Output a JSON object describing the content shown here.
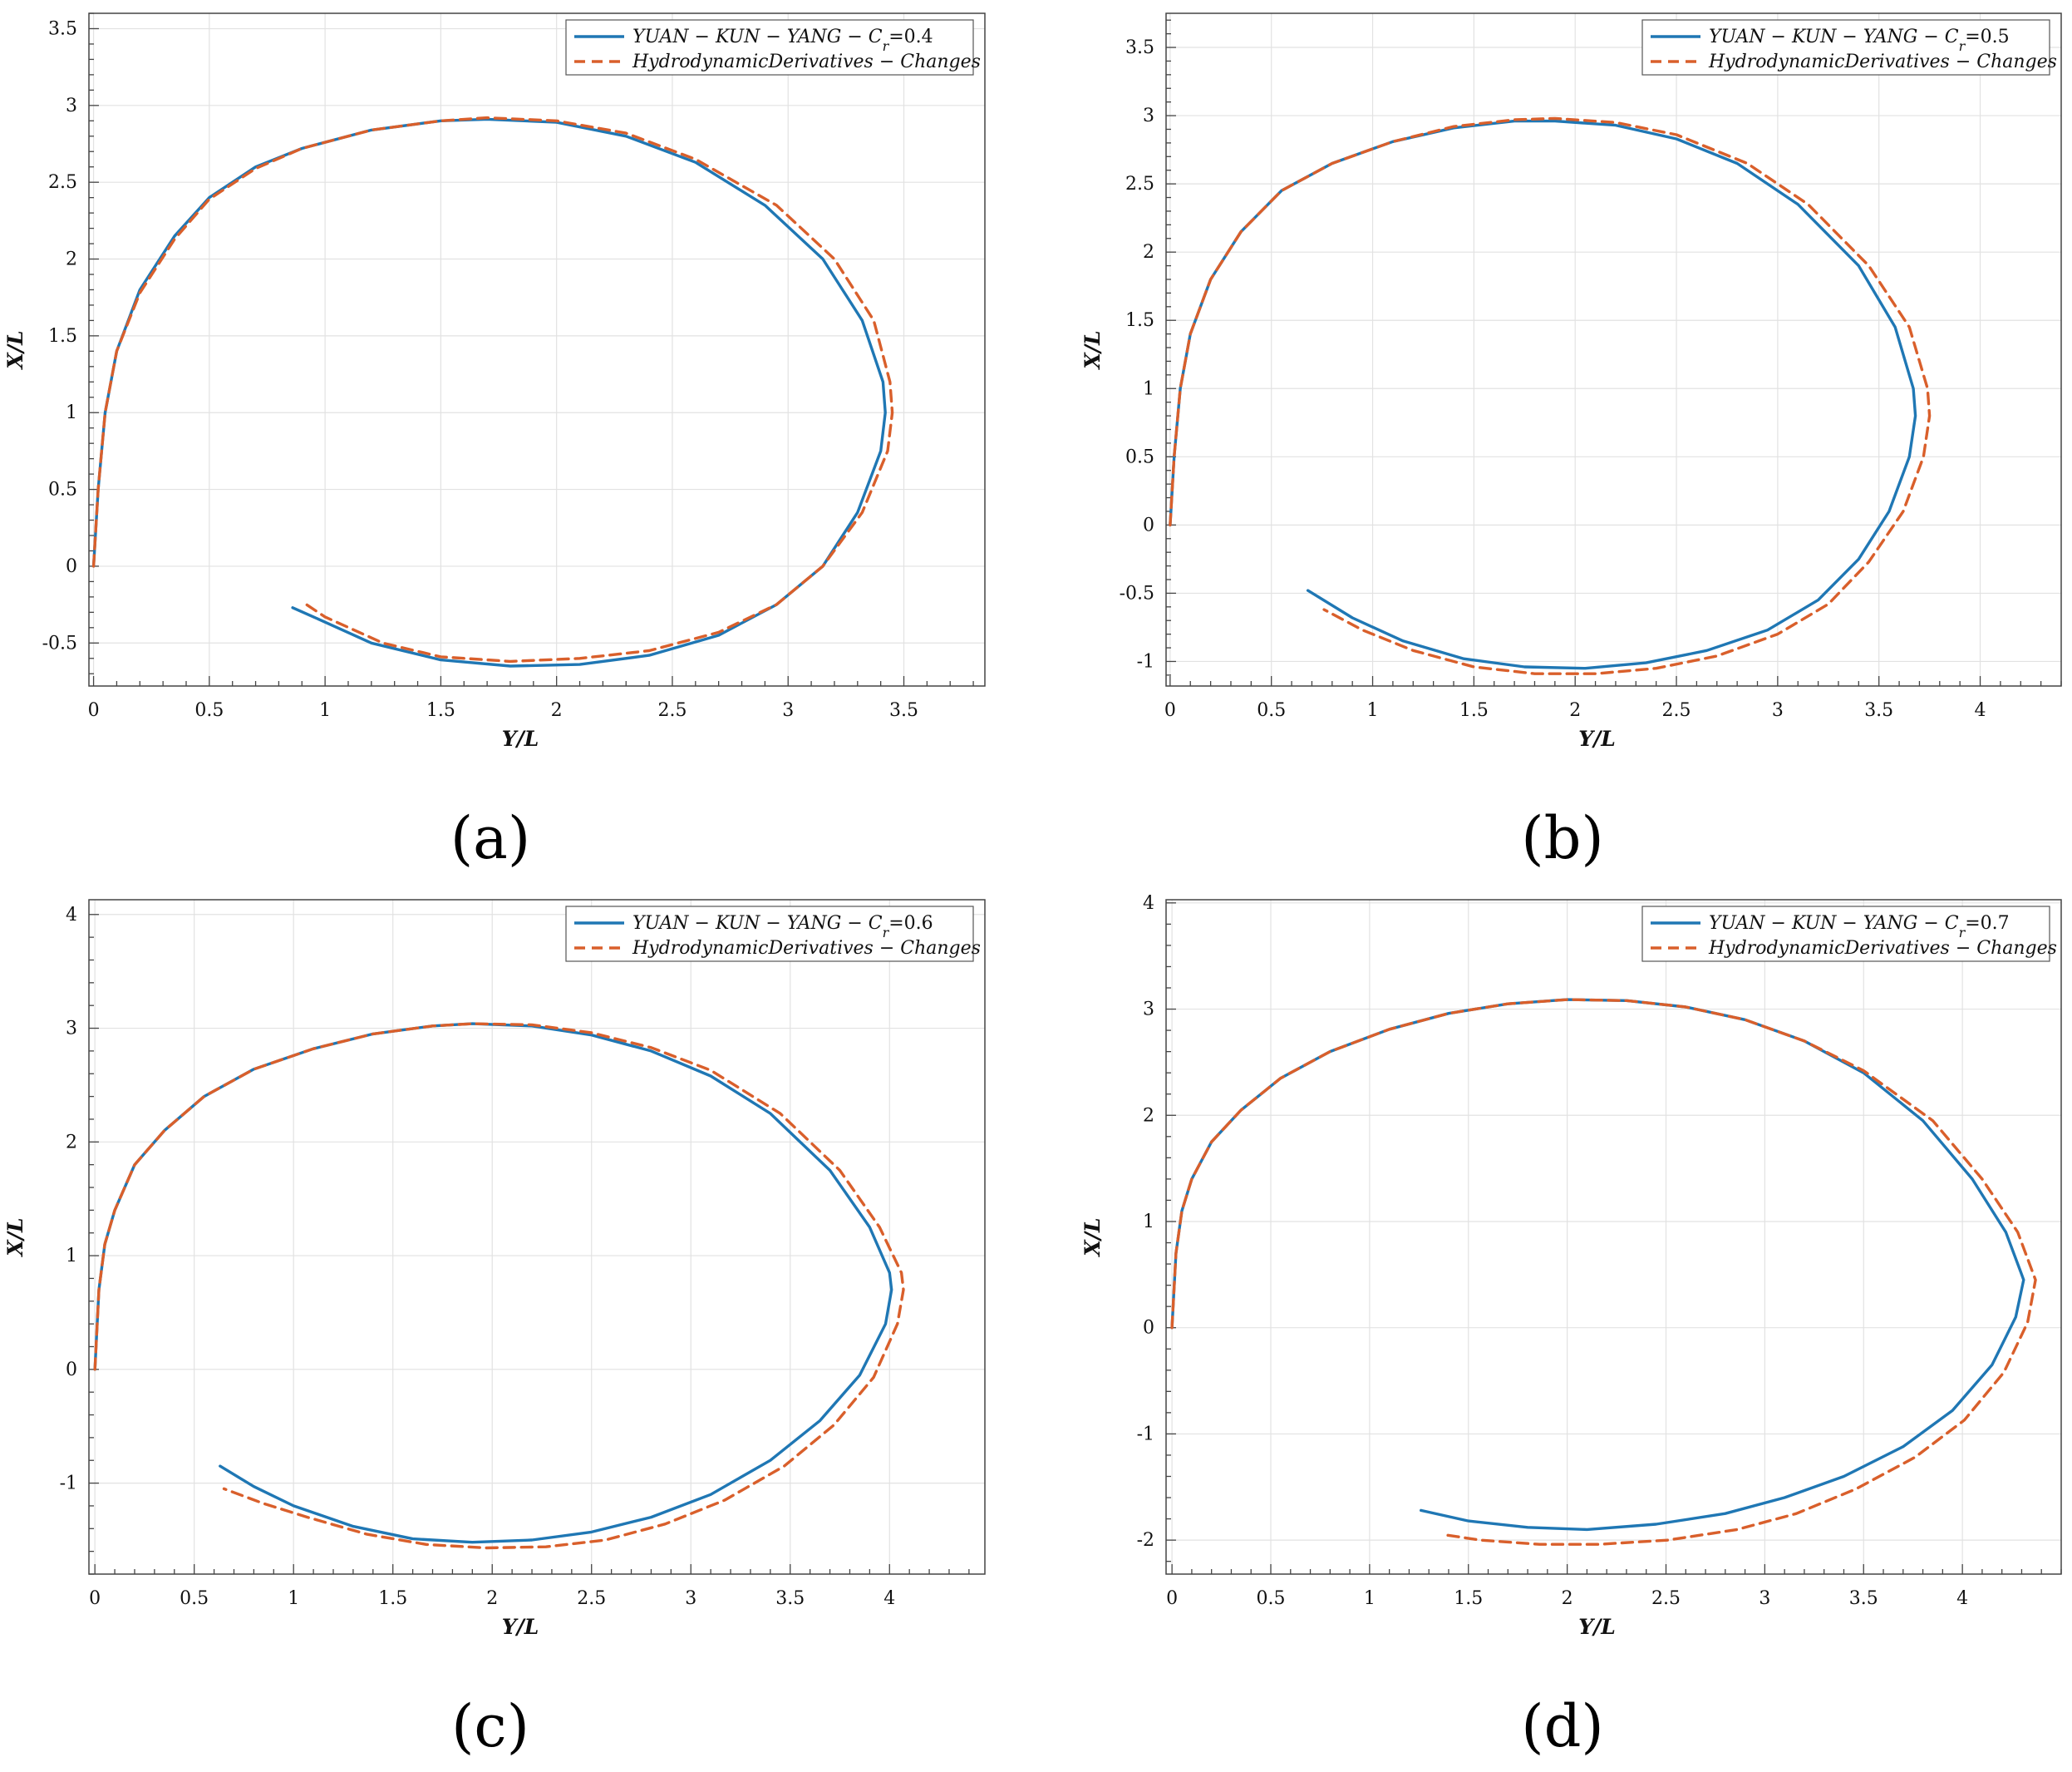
{
  "colors": {
    "series1": "#1f77b4",
    "series2": "#d95f2b",
    "grid": "#e2e2e2",
    "axis": "#444444"
  },
  "chart_data": [
    {
      "type": "line",
      "panel_label": "(a)",
      "xlabel": "Y/L",
      "ylabel": "X/L",
      "xlim": [
        -0.02,
        3.85
      ],
      "ylim": [
        -0.78,
        3.6
      ],
      "xticks": [
        0,
        0.5,
        1,
        1.5,
        2,
        2.5,
        3,
        3.5
      ],
      "yticks": [
        -0.5,
        0,
        0.5,
        1,
        1.5,
        2,
        2.5,
        3,
        3.5
      ],
      "grid": true,
      "legend_position": "top-right",
      "series": [
        {
          "name": "YUAN − KUN − YANG − C_r=0.4",
          "legend": {
            "prefix": "YUAN − KUN − YANG − C",
            "sub": "r",
            "suffix": "=0.4"
          },
          "style": "solid",
          "x": [
            0,
            0.02,
            0.05,
            0.1,
            0.2,
            0.35,
            0.5,
            0.7,
            0.9,
            1.2,
            1.5,
            1.7,
            2.0,
            2.3,
            2.6,
            2.9,
            3.15,
            3.32,
            3.41,
            3.42,
            3.4,
            3.3,
            3.15,
            2.95,
            2.7,
            2.4,
            2.1,
            1.8,
            1.5,
            1.2,
            0.95,
            0.86
          ],
          "y": [
            0,
            0.5,
            1.0,
            1.4,
            1.8,
            2.15,
            2.4,
            2.6,
            2.72,
            2.84,
            2.9,
            2.91,
            2.89,
            2.8,
            2.63,
            2.35,
            2.0,
            1.6,
            1.2,
            1.0,
            0.75,
            0.35,
            0.0,
            -0.25,
            -0.45,
            -0.58,
            -0.64,
            -0.65,
            -0.61,
            -0.5,
            -0.33,
            -0.27
          ]
        },
        {
          "name": "HydrodynamicDerivatives − Changes",
          "legend": {
            "prefix": "HydrodynamicDerivatives − Changes",
            "sub": "",
            "suffix": ""
          },
          "style": "dashed",
          "x": [
            0,
            0.02,
            0.05,
            0.1,
            0.2,
            0.35,
            0.5,
            0.7,
            0.9,
            1.2,
            1.5,
            1.7,
            2.0,
            2.3,
            2.6,
            2.95,
            3.2,
            3.37,
            3.44,
            3.45,
            3.43,
            3.32,
            3.15,
            2.95,
            2.7,
            2.4,
            2.1,
            1.8,
            1.5,
            1.25,
            1.0,
            0.92
          ],
          "y": [
            0,
            0.5,
            1.0,
            1.4,
            1.78,
            2.13,
            2.39,
            2.59,
            2.72,
            2.84,
            2.9,
            2.92,
            2.9,
            2.82,
            2.65,
            2.35,
            2.0,
            1.6,
            1.2,
            1.0,
            0.75,
            0.35,
            0.0,
            -0.25,
            -0.43,
            -0.55,
            -0.6,
            -0.62,
            -0.59,
            -0.5,
            -0.33,
            -0.25
          ]
        }
      ]
    },
    {
      "type": "line",
      "panel_label": "(b)",
      "xlabel": "Y/L",
      "ylabel": "X/L",
      "xlim": [
        -0.02,
        4.4
      ],
      "ylim": [
        -1.18,
        3.75
      ],
      "xticks": [
        0,
        0.5,
        1,
        1.5,
        2,
        2.5,
        3,
        3.5,
        4
      ],
      "yticks": [
        -1,
        -0.5,
        0,
        0.5,
        1,
        1.5,
        2,
        2.5,
        3,
        3.5
      ],
      "grid": true,
      "legend_position": "top-right",
      "series": [
        {
          "name": "YUAN − KUN − YANG − C_r=0.5",
          "legend": {
            "prefix": "YUAN − KUN − YANG − C",
            "sub": "r",
            "suffix": "=0.5"
          },
          "style": "solid",
          "x": [
            0,
            0.02,
            0.05,
            0.1,
            0.2,
            0.35,
            0.55,
            0.8,
            1.1,
            1.4,
            1.7,
            1.9,
            2.2,
            2.5,
            2.8,
            3.1,
            3.4,
            3.58,
            3.67,
            3.68,
            3.65,
            3.55,
            3.4,
            3.2,
            2.95,
            2.65,
            2.35,
            2.05,
            1.75,
            1.45,
            1.15,
            0.9,
            0.68
          ],
          "y": [
            0,
            0.5,
            1.0,
            1.4,
            1.8,
            2.15,
            2.45,
            2.65,
            2.81,
            2.91,
            2.96,
            2.96,
            2.93,
            2.83,
            2.65,
            2.35,
            1.9,
            1.45,
            1.0,
            0.8,
            0.5,
            0.1,
            -0.25,
            -0.55,
            -0.77,
            -0.92,
            -1.01,
            -1.05,
            -1.04,
            -0.98,
            -0.85,
            -0.68,
            -0.48
          ]
        },
        {
          "name": "HydrodynamicDerivatives − Changes",
          "legend": {
            "prefix": "HydrodynamicDerivatives − Changes",
            "sub": "",
            "suffix": ""
          },
          "style": "dashed",
          "x": [
            0,
            0.02,
            0.05,
            0.1,
            0.2,
            0.35,
            0.55,
            0.8,
            1.1,
            1.4,
            1.7,
            1.9,
            2.2,
            2.5,
            2.85,
            3.15,
            3.45,
            3.65,
            3.74,
            3.75,
            3.72,
            3.62,
            3.45,
            3.25,
            3.0,
            2.7,
            2.4,
            2.1,
            1.8,
            1.5,
            1.2,
            0.95,
            0.76
          ],
          "y": [
            0,
            0.5,
            1.0,
            1.4,
            1.8,
            2.15,
            2.45,
            2.65,
            2.81,
            2.92,
            2.97,
            2.98,
            2.95,
            2.86,
            2.65,
            2.35,
            1.9,
            1.45,
            1.0,
            0.8,
            0.5,
            0.1,
            -0.27,
            -0.58,
            -0.8,
            -0.96,
            -1.05,
            -1.09,
            -1.09,
            -1.04,
            -0.92,
            -0.77,
            -0.62
          ]
        }
      ]
    },
    {
      "type": "line",
      "panel_label": "(c)",
      "xlabel": "Y/L",
      "ylabel": "X/L",
      "xlim": [
        -0.03,
        4.48
      ],
      "ylim": [
        -1.8,
        4.13
      ],
      "xticks": [
        0,
        0.5,
        1,
        1.5,
        2,
        2.5,
        3,
        3.5,
        4
      ],
      "yticks": [
        -1,
        0,
        1,
        2,
        3,
        4
      ],
      "grid": true,
      "legend_position": "top-right",
      "series": [
        {
          "name": "YUAN − KUN − YANG − C_r=0.6",
          "legend": {
            "prefix": "YUAN − KUN − YANG − C",
            "sub": "r",
            "suffix": "=0.6"
          },
          "style": "solid",
          "x": [
            0,
            0.02,
            0.05,
            0.1,
            0.2,
            0.35,
            0.55,
            0.8,
            1.1,
            1.4,
            1.7,
            1.9,
            2.2,
            2.5,
            2.8,
            3.1,
            3.4,
            3.7,
            3.9,
            4.0,
            4.01,
            3.98,
            3.85,
            3.65,
            3.4,
            3.1,
            2.8,
            2.5,
            2.2,
            1.9,
            1.6,
            1.3,
            1.0,
            0.8,
            0.63
          ],
          "y": [
            0,
            0.7,
            1.1,
            1.4,
            1.8,
            2.1,
            2.4,
            2.64,
            2.82,
            2.95,
            3.02,
            3.04,
            3.02,
            2.94,
            2.8,
            2.58,
            2.25,
            1.75,
            1.25,
            0.85,
            0.7,
            0.4,
            -0.05,
            -0.45,
            -0.8,
            -1.1,
            -1.3,
            -1.43,
            -1.5,
            -1.52,
            -1.49,
            -1.38,
            -1.2,
            -1.03,
            -0.85
          ]
        },
        {
          "name": "HydrodynamicDerivatives − Changes",
          "legend": {
            "prefix": "HydrodynamicDerivatives − Changes",
            "sub": "",
            "suffix": ""
          },
          "style": "dashed",
          "x": [
            0,
            0.02,
            0.05,
            0.1,
            0.2,
            0.35,
            0.55,
            0.8,
            1.1,
            1.4,
            1.7,
            1.9,
            2.2,
            2.5,
            2.8,
            3.1,
            3.45,
            3.75,
            3.95,
            4.06,
            4.07,
            4.04,
            3.92,
            3.72,
            3.47,
            3.17,
            2.87,
            2.57,
            2.27,
            1.97,
            1.67,
            1.37,
            1.07,
            0.85,
            0.65
          ],
          "y": [
            0,
            0.7,
            1.1,
            1.4,
            1.8,
            2.1,
            2.4,
            2.64,
            2.82,
            2.95,
            3.02,
            3.04,
            3.03,
            2.96,
            2.83,
            2.63,
            2.25,
            1.75,
            1.25,
            0.85,
            0.7,
            0.4,
            -0.07,
            -0.49,
            -0.85,
            -1.15,
            -1.36,
            -1.5,
            -1.56,
            -1.57,
            -1.54,
            -1.45,
            -1.3,
            -1.18,
            -1.05
          ]
        }
      ]
    },
    {
      "type": "line",
      "panel_label": "(d)",
      "xlabel": "Y/L",
      "ylabel": "X/L",
      "xlim": [
        -0.03,
        4.5
      ],
      "ylim": [
        -2.32,
        4.03
      ],
      "xticks": [
        0,
        0.5,
        1,
        1.5,
        2,
        2.5,
        3,
        3.5,
        4
      ],
      "yticks": [
        -2,
        -1,
        0,
        1,
        2,
        3,
        4
      ],
      "grid": true,
      "legend_position": "top-right",
      "series": [
        {
          "name": "YUAN − KUN − YANG − C_r=0.7",
          "legend": {
            "prefix": "YUAN − KUN − YANG − C",
            "sub": "r",
            "suffix": "=0.7"
          },
          "style": "solid",
          "x": [
            0,
            0.02,
            0.05,
            0.1,
            0.2,
            0.35,
            0.55,
            0.8,
            1.1,
            1.4,
            1.7,
            2.0,
            2.3,
            2.6,
            2.9,
            3.2,
            3.5,
            3.8,
            4.05,
            4.22,
            4.3,
            4.31,
            4.27,
            4.15,
            3.95,
            3.7,
            3.4,
            3.1,
            2.8,
            2.45,
            2.1,
            1.8,
            1.5,
            1.26
          ],
          "y": [
            0,
            0.7,
            1.1,
            1.4,
            1.75,
            2.05,
            2.35,
            2.6,
            2.81,
            2.96,
            3.05,
            3.09,
            3.08,
            3.02,
            2.9,
            2.7,
            2.4,
            1.95,
            1.4,
            0.9,
            0.5,
            0.45,
            0.1,
            -0.35,
            -0.78,
            -1.12,
            -1.4,
            -1.6,
            -1.75,
            -1.85,
            -1.9,
            -1.88,
            -1.82,
            -1.72
          ]
        },
        {
          "name": "HydrodynamicDerivatives − Changes",
          "legend": {
            "prefix": "HydrodynamicDerivatives − Changes",
            "sub": "",
            "suffix": ""
          },
          "style": "dashed",
          "x": [
            0,
            0.02,
            0.05,
            0.1,
            0.2,
            0.35,
            0.55,
            0.8,
            1.1,
            1.4,
            1.7,
            2.0,
            2.3,
            2.6,
            2.9,
            3.2,
            3.5,
            3.85,
            4.1,
            4.28,
            4.36,
            4.37,
            4.33,
            4.21,
            4.01,
            3.76,
            3.46,
            3.16,
            2.86,
            2.51,
            2.16,
            1.86,
            1.56,
            1.38
          ],
          "y": [
            0,
            0.7,
            1.1,
            1.4,
            1.75,
            2.05,
            2.35,
            2.6,
            2.81,
            2.96,
            3.05,
            3.09,
            3.08,
            3.02,
            2.9,
            2.7,
            2.42,
            1.95,
            1.4,
            0.9,
            0.5,
            0.45,
            0.05,
            -0.42,
            -0.87,
            -1.22,
            -1.52,
            -1.75,
            -1.9,
            -2.0,
            -2.04,
            -2.04,
            -2.0,
            -1.95
          ]
        }
      ]
    }
  ]
}
